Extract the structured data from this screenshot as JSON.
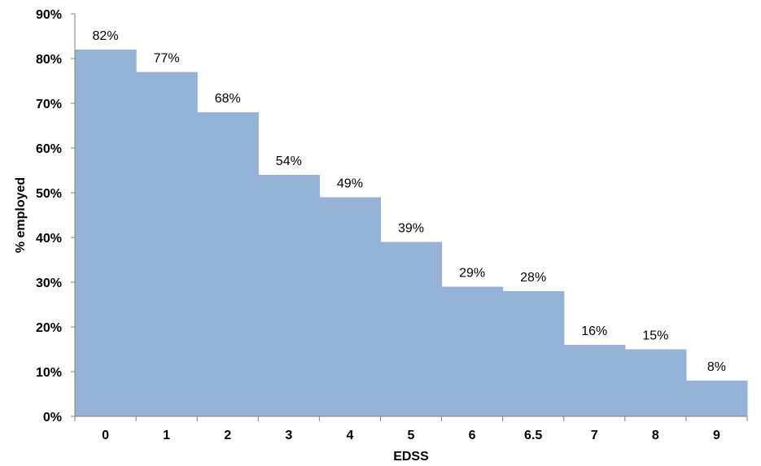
{
  "chart_data": {
    "type": "bar",
    "categories": [
      "0",
      "1",
      "2",
      "3",
      "4",
      "5",
      "6",
      "6.5",
      "7",
      "8",
      "9"
    ],
    "values": [
      82,
      77,
      68,
      54,
      49,
      39,
      29,
      28,
      16,
      15,
      8
    ],
    "data_labels": [
      "82%",
      "77%",
      "68%",
      "54%",
      "49%",
      "39%",
      "29%",
      "28%",
      "16%",
      "15%",
      "8%"
    ],
    "xlabel": "EDSS",
    "ylabel": "% employed",
    "ylim": [
      0,
      90
    ],
    "yticks": [
      0,
      10,
      20,
      30,
      40,
      50,
      60,
      70,
      80,
      90
    ],
    "ytick_labels": [
      "0%",
      "10%",
      "20%",
      "30%",
      "40%",
      "50%",
      "60%",
      "70%",
      "80%",
      "90%"
    ],
    "grid": false,
    "legend": "none",
    "bar_gap": 0,
    "color": "#95b3d7"
  }
}
